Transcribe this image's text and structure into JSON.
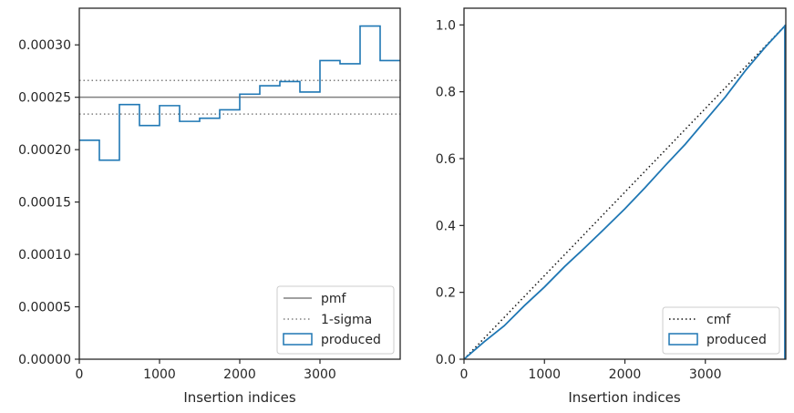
{
  "chart_data": [
    {
      "type": "step-histogram",
      "xlabel": "Insertion indices",
      "ylabel": "",
      "xlim": [
        0,
        4000
      ],
      "ylim": [
        0,
        0.000335
      ],
      "x_ticks": [
        0,
        1000,
        2000,
        3000
      ],
      "x_tick_labels": [
        "0",
        "1000",
        "2000",
        "3000"
      ],
      "y_ticks": [
        0,
        5e-05,
        0.0001,
        0.00015,
        0.0002,
        0.00025,
        0.0003
      ],
      "y_tick_labels": [
        "0.00000",
        "0.00005",
        "0.00010",
        "0.00015",
        "0.00020",
        "0.00025",
        "0.00030"
      ],
      "bin_edges": [
        0,
        250,
        500,
        750,
        1000,
        1250,
        1500,
        1750,
        2000,
        2250,
        2500,
        2750,
        3000,
        3250,
        3500,
        3750,
        4000
      ],
      "series": [
        {
          "name": "produced",
          "kind": "step",
          "color": "#1f77b4",
          "values": [
            0.000209,
            0.00019,
            0.000243,
            0.000223,
            0.000242,
            0.000227,
            0.00023,
            0.000238,
            0.000253,
            0.000261,
            0.000265,
            0.000255,
            0.000285,
            0.000282,
            0.000318,
            0.000285
          ]
        },
        {
          "name": "pmf",
          "kind": "hline",
          "color": "#808080",
          "y": 0.00025
        },
        {
          "name": "1-sigma",
          "kind": "hline-dotted",
          "color": "#808080",
          "y": [
            0.000234,
            0.000266
          ]
        }
      ],
      "legend_entries": [
        "pmf",
        "1-sigma",
        "produced"
      ],
      "legend_position": "lower-right",
      "grid": false
    },
    {
      "type": "line",
      "xlabel": "Insertion indices",
      "ylabel": "",
      "xlim": [
        0,
        4000
      ],
      "ylim": [
        0,
        1.05
      ],
      "x_ticks": [
        0,
        1000,
        2000,
        3000
      ],
      "x_tick_labels": [
        "0",
        "1000",
        "2000",
        "3000"
      ],
      "y_ticks": [
        0,
        0.2,
        0.4,
        0.6,
        0.8,
        1.0
      ],
      "y_tick_labels": [
        "0.0",
        "0.2",
        "0.4",
        "0.6",
        "0.8",
        "1.0"
      ],
      "series": [
        {
          "name": "cmf",
          "kind": "dotted",
          "color": "#111111",
          "x": [
            0,
            4000
          ],
          "y": [
            0,
            1
          ]
        },
        {
          "name": "produced",
          "kind": "solid",
          "color": "#1f77b4",
          "x": [
            0,
            250,
            500,
            750,
            1000,
            1250,
            1500,
            1750,
            2000,
            2250,
            2500,
            2750,
            3000,
            3250,
            3500,
            3750,
            4000
          ],
          "y": [
            0,
            0.052,
            0.1,
            0.16,
            0.216,
            0.277,
            0.333,
            0.391,
            0.45,
            0.513,
            0.579,
            0.643,
            0.714,
            0.785,
            0.864,
            0.935,
            1.0
          ]
        }
      ],
      "legend_entries": [
        "cmf",
        "produced"
      ],
      "legend_position": "lower-right",
      "grid": false
    }
  ]
}
